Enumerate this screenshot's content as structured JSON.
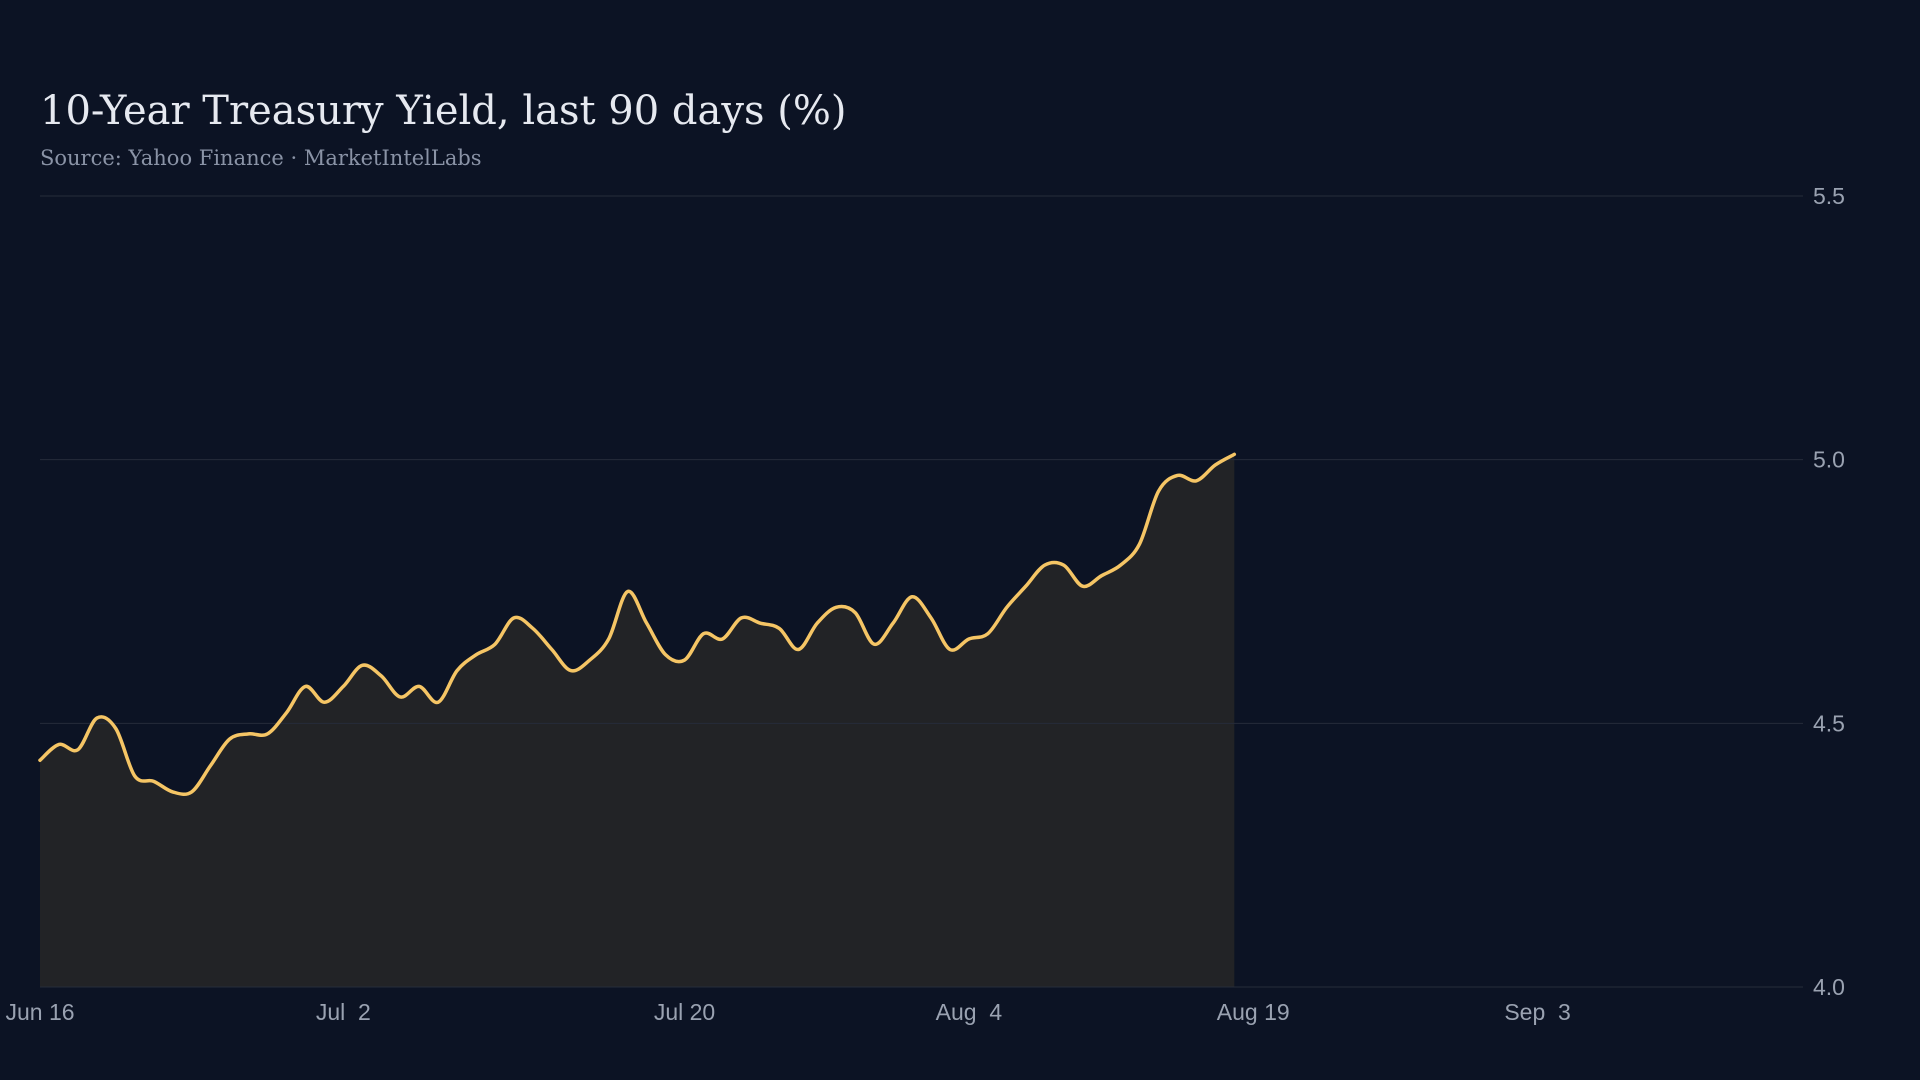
{
  "header": {
    "title": "10-Year Treasury Yield, last 90 days (%)",
    "subtitle": "Source: Yahoo Finance · MarketIntelLabs"
  },
  "colors": {
    "background": "#0c1324",
    "line": "#f5c565",
    "area": "#222326",
    "grid": "#262c3a"
  },
  "chart_data": {
    "type": "area",
    "title": "10-Year Treasury Yield, last 90 days (%)",
    "subtitle": "Source: Yahoo Finance · MarketIntelLabs",
    "xlabel": "",
    "ylabel": "",
    "grid": "horizontal",
    "y_axis_position": "right",
    "ylim": [
      4.0,
      5.5
    ],
    "yticks": [
      4.0,
      4.5,
      5.0,
      5.5
    ],
    "ytick_labels": [
      "4.0",
      "4.5",
      "5.0",
      "5.5"
    ],
    "xlim": [
      "2024-06-16",
      "2024-09-17"
    ],
    "xtick_labels": [
      {
        "date": "2024-06-16",
        "label": "Jun 16"
      },
      {
        "date": "2024-07-02",
        "label": "Jul  2"
      },
      {
        "date": "2024-07-20",
        "label": "Jul 20"
      },
      {
        "date": "2024-08-04",
        "label": "Aug  4"
      },
      {
        "date": "2024-08-19",
        "label": "Aug 19"
      },
      {
        "date": "2024-09-03",
        "label": "Sep  3"
      }
    ],
    "series": [
      {
        "points": [
          [
            "2024-06-16",
            4.43
          ],
          [
            "2024-06-17",
            4.46
          ],
          [
            "2024-06-18",
            4.45
          ],
          [
            "2024-06-19",
            4.51
          ],
          [
            "2024-06-20",
            4.49
          ],
          [
            "2024-06-21",
            4.4
          ],
          [
            "2024-06-22",
            4.39
          ],
          [
            "2024-06-23",
            4.37
          ],
          [
            "2024-06-24",
            4.37
          ],
          [
            "2024-06-25",
            4.42
          ],
          [
            "2024-06-26",
            4.47
          ],
          [
            "2024-06-27",
            4.48
          ],
          [
            "2024-06-28",
            4.48
          ],
          [
            "2024-06-29",
            4.52
          ],
          [
            "2024-06-30",
            4.57
          ],
          [
            "2024-07-01",
            4.54
          ],
          [
            "2024-07-02",
            4.57
          ],
          [
            "2024-07-03",
            4.61
          ],
          [
            "2024-07-04",
            4.59
          ],
          [
            "2024-07-05",
            4.55
          ],
          [
            "2024-07-06",
            4.57
          ],
          [
            "2024-07-07",
            4.54
          ],
          [
            "2024-07-08",
            4.6
          ],
          [
            "2024-07-09",
            4.63
          ],
          [
            "2024-07-10",
            4.65
          ],
          [
            "2024-07-11",
            4.7
          ],
          [
            "2024-07-12",
            4.68
          ],
          [
            "2024-07-13",
            4.64
          ],
          [
            "2024-07-14",
            4.6
          ],
          [
            "2024-07-15",
            4.62
          ],
          [
            "2024-07-16",
            4.66
          ],
          [
            "2024-07-17",
            4.75
          ],
          [
            "2024-07-18",
            4.69
          ],
          [
            "2024-07-19",
            4.63
          ],
          [
            "2024-07-20",
            4.62
          ],
          [
            "2024-07-21",
            4.67
          ],
          [
            "2024-07-22",
            4.66
          ],
          [
            "2024-07-23",
            4.7
          ],
          [
            "2024-07-24",
            4.69
          ],
          [
            "2024-07-25",
            4.68
          ],
          [
            "2024-07-26",
            4.64
          ],
          [
            "2024-07-27",
            4.69
          ],
          [
            "2024-07-28",
            4.72
          ],
          [
            "2024-07-29",
            4.71
          ],
          [
            "2024-07-30",
            4.65
          ],
          [
            "2024-07-31",
            4.69
          ],
          [
            "2024-08-01",
            4.74
          ],
          [
            "2024-08-02",
            4.7
          ],
          [
            "2024-08-03",
            4.64
          ],
          [
            "2024-08-04",
            4.66
          ],
          [
            "2024-08-05",
            4.67
          ],
          [
            "2024-08-06",
            4.72
          ],
          [
            "2024-08-07",
            4.76
          ],
          [
            "2024-08-08",
            4.8
          ],
          [
            "2024-08-09",
            4.8
          ],
          [
            "2024-08-10",
            4.76
          ],
          [
            "2024-08-11",
            4.78
          ],
          [
            "2024-08-12",
            4.8
          ],
          [
            "2024-08-13",
            4.84
          ],
          [
            "2024-08-14",
            4.94
          ],
          [
            "2024-08-15",
            4.97
          ],
          [
            "2024-08-16",
            4.96
          ],
          [
            "2024-08-17",
            4.99
          ],
          [
            "2024-08-18",
            5.01
          ]
        ]
      }
    ]
  }
}
